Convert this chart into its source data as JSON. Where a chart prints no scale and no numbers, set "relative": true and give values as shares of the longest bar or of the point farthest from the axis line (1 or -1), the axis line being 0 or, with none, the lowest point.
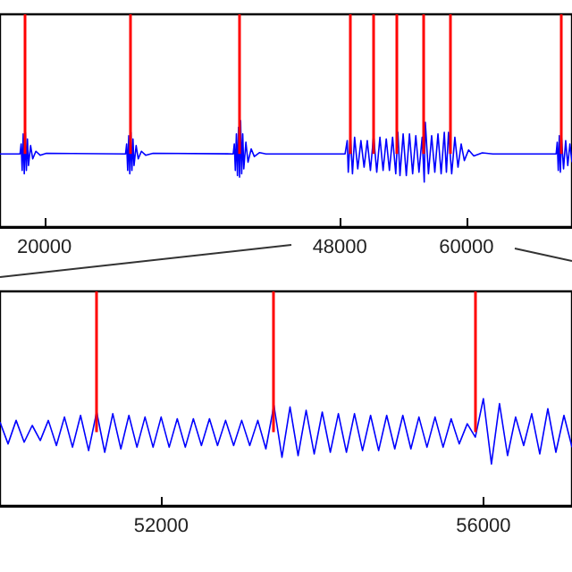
{
  "chart_data": [
    {
      "type": "line",
      "relative": true,
      "tick_labels": "x",
      "grid": false,
      "marker": "none",
      "xlim": [
        15800,
        70000
      ],
      "xticks": [
        20000,
        48000,
        60000
      ],
      "series": [
        {
          "color": "#0000ff",
          "x": [
            15800,
            17700,
            17800,
            17900,
            18000,
            18100,
            18200,
            18300,
            18400,
            18500,
            18700,
            18900,
            19200,
            19600,
            20200,
            27700,
            27800,
            27900,
            28000,
            28100,
            28200,
            28300,
            28400,
            28500,
            28700,
            28900,
            29200,
            29600,
            30300,
            37900,
            38000,
            38100,
            38200,
            38300,
            38400,
            38500,
            38600,
            38700,
            38800,
            38900,
            39100,
            39300,
            39600,
            39900,
            40400,
            41000,
            48500,
            48700,
            48800,
            49000,
            49200,
            49400,
            49700,
            50000,
            50300,
            50600,
            50900,
            51200,
            51500,
            51800,
            52100,
            52400,
            52700,
            53000,
            53300,
            53500,
            53700,
            54000,
            54300,
            54600,
            54900,
            55200,
            55500,
            55800,
            56000,
            56100,
            56400,
            56700,
            57000,
            57300,
            57600,
            57900,
            58100,
            58300,
            58600,
            58900,
            59200,
            59500,
            59800,
            60200,
            60700,
            61500,
            62500,
            68500,
            68600,
            68700,
            68800,
            68900,
            69000,
            69200,
            69400,
            69600,
            69800,
            70000
          ],
          "values": [
            0,
            0,
            0.3,
            -0.5,
            0.6,
            -0.6,
            0.65,
            -0.5,
            0.45,
            -0.35,
            0.25,
            -0.15,
            0.08,
            -0.04,
            0.02,
            0,
            0.3,
            -0.5,
            0.55,
            -0.6,
            0.65,
            -0.5,
            0.45,
            -0.35,
            0.25,
            -0.15,
            0.08,
            -0.04,
            0.02,
            0,
            0.3,
            -0.5,
            0.6,
            -0.65,
            0.8,
            -0.7,
            1,
            -0.6,
            0.6,
            -0.45,
            0.35,
            -0.25,
            0.15,
            -0.08,
            0.04,
            0,
            0,
            0.4,
            -0.55,
            0.55,
            -0.6,
            0.5,
            -0.45,
            0.4,
            -0.4,
            0.4,
            -0.5,
            0.55,
            -0.55,
            0.5,
            -0.5,
            0.45,
            -0.5,
            0.5,
            -0.6,
            0.65,
            -0.65,
            0.6,
            -0.65,
            0.6,
            -0.6,
            0.55,
            -0.55,
            0.5,
            -0.85,
            0.95,
            -0.6,
            0.55,
            -0.55,
            0.6,
            -0.6,
            0.65,
            -0.55,
            0.65,
            -0.6,
            0.5,
            -0.4,
            0.3,
            -0.2,
            0.12,
            -0.06,
            0.03,
            0,
            0,
            0.35,
            -0.5,
            0.55,
            -0.55,
            0.5,
            -0.45,
            0.4,
            -0.35,
            0.3,
            -0.25
          ]
        }
      ],
      "ref_lines": [
        {
          "axis": "x",
          "value": 18100,
          "color": "#ff0000"
        },
        {
          "axis": "x",
          "value": 28100,
          "color": "#ff0000"
        },
        {
          "axis": "x",
          "value": 38400,
          "color": "#ff0000"
        },
        {
          "axis": "x",
          "value": 49000,
          "color": "#ff0000"
        },
        {
          "axis": "x",
          "value": 51200,
          "color": "#ff0000"
        },
        {
          "axis": "x",
          "value": 53400,
          "color": "#ff0000"
        },
        {
          "axis": "x",
          "value": 55900,
          "color": "#ff0000"
        },
        {
          "axis": "x",
          "value": 58500,
          "color": "#ff0000"
        },
        {
          "axis": "x",
          "value": 68900,
          "color": "#ff0000"
        }
      ]
    },
    {
      "type": "line",
      "relative": true,
      "tick_labels": "x",
      "grid": false,
      "marker": "none",
      "xlim": [
        50000,
        57100
      ],
      "xticks": [
        52000,
        56000
      ],
      "series": [
        {
          "color": "#0000ff",
          "x": [
            50000,
            50100,
            50200,
            50300,
            50400,
            50500,
            50600,
            50700,
            50800,
            50900,
            51000,
            51100,
            51200,
            51300,
            51400,
            51500,
            51600,
            51700,
            51800,
            51900,
            52000,
            52100,
            52200,
            52300,
            52400,
            52500,
            52600,
            52700,
            52800,
            52900,
            53000,
            53100,
            53200,
            53300,
            53400,
            53500,
            53600,
            53700,
            53800,
            53900,
            54000,
            54100,
            54200,
            54300,
            54400,
            54500,
            54600,
            54700,
            54800,
            54900,
            55000,
            55100,
            55200,
            55300,
            55400,
            55500,
            55600,
            55700,
            55800,
            55900,
            56000,
            56100,
            56200,
            56300,
            56400,
            56500,
            56600,
            56700,
            56800,
            56900,
            57000,
            57100
          ],
          "values": [
            0.3,
            -0.35,
            0.35,
            -0.3,
            0.2,
            -0.25,
            0.35,
            -0.4,
            0.45,
            -0.45,
            0.5,
            -0.55,
            0.6,
            -0.6,
            0.55,
            -0.5,
            0.5,
            -0.45,
            0.45,
            -0.45,
            0.45,
            -0.45,
            0.4,
            -0.45,
            0.4,
            -0.4,
            0.4,
            -0.4,
            0.35,
            -0.4,
            0.35,
            -0.4,
            0.35,
            -0.5,
            0.8,
            -0.75,
            0.75,
            -0.7,
            0.65,
            -0.65,
            0.6,
            -0.6,
            0.55,
            -0.6,
            0.55,
            -0.55,
            0.5,
            -0.55,
            0.5,
            -0.5,
            0.5,
            -0.5,
            0.45,
            -0.45,
            0.45,
            -0.45,
            0.4,
            -0.35,
            0.25,
            -0.15,
            1,
            -0.95,
            0.85,
            -0.7,
            0.45,
            -0.4,
            0.55,
            -0.65,
            0.7,
            -0.6,
            0.5,
            -0.45
          ]
        }
      ],
      "ref_lines": [
        {
          "axis": "x",
          "value": 51200,
          "color": "#ff0000"
        },
        {
          "axis": "x",
          "value": 53400,
          "color": "#ff0000"
        },
        {
          "axis": "x",
          "value": 55900,
          "color": "#ff0000"
        }
      ]
    }
  ]
}
